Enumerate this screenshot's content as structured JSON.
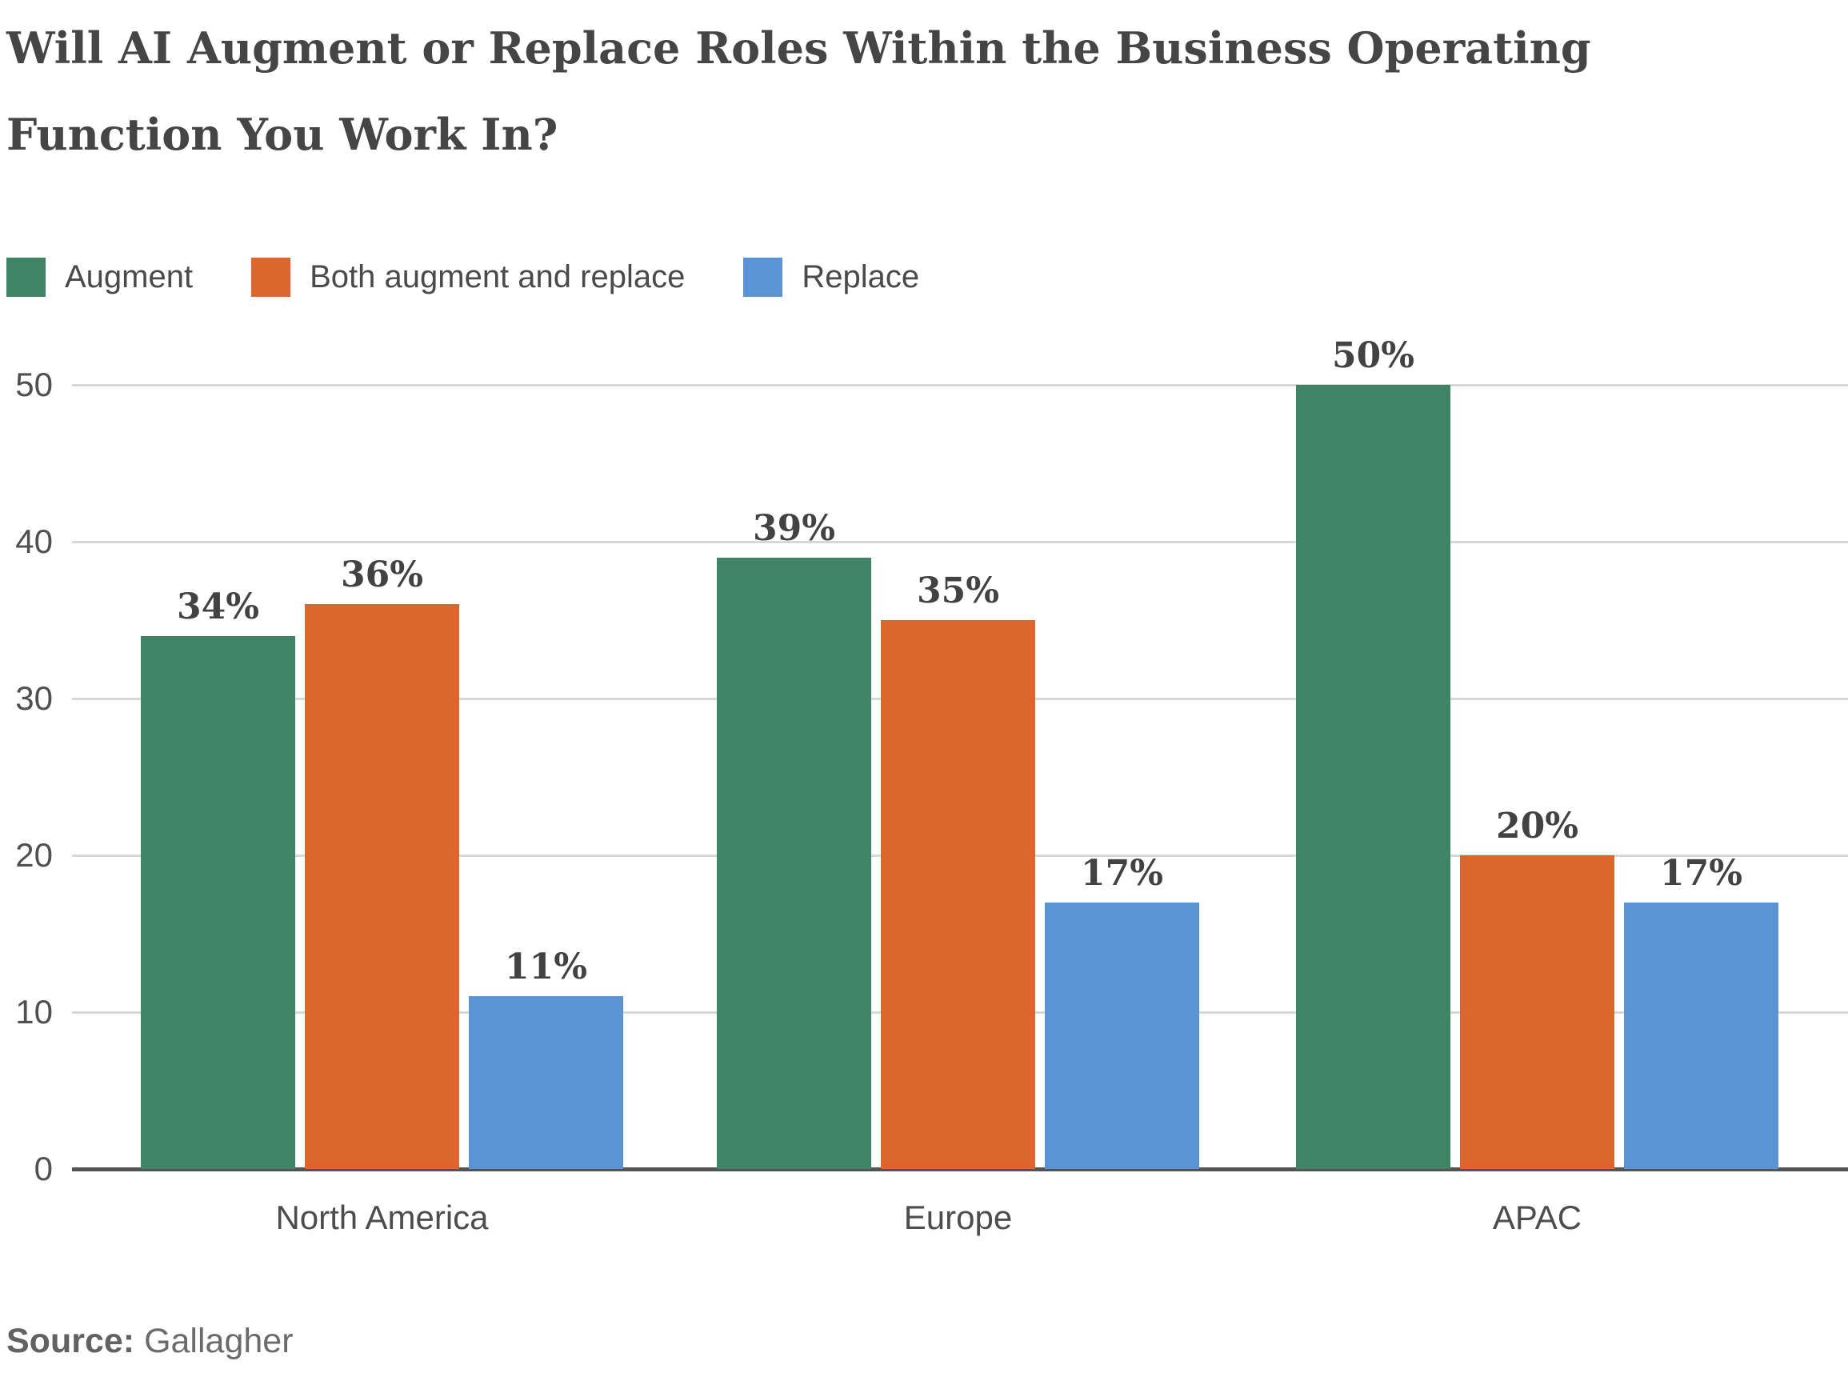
{
  "title": {
    "line1": "Will AI Augment or Replace Roles Within the Business Operating",
    "line2": "Function You Work In?"
  },
  "source": {
    "label": "Source:",
    "value": "Gallagher"
  },
  "chart_data": {
    "type": "bar",
    "title": "Will AI Augment or Replace Roles Within the Business Operating Function You Work In?",
    "categories": [
      "North America",
      "Europe",
      "APAC"
    ],
    "series": [
      {
        "name": "Augment",
        "color": "#3F8464",
        "values": [
          34,
          39,
          50
        ]
      },
      {
        "name": "Both augment and replace",
        "color": "#DD662F",
        "values": [
          36,
          35,
          20
        ]
      },
      {
        "name": "Replace",
        "color": "#5A94D5",
        "values": [
          11,
          17,
          17
        ]
      }
    ],
    "value_suffix": "%",
    "xlabel": "",
    "ylabel": "",
    "ylim": [
      0,
      52
    ],
    "yticks": [
      0,
      10,
      20,
      30,
      40,
      50
    ],
    "grid": true,
    "legend_position": "top-left",
    "colors": {
      "grid": "#d8d8d8",
      "axis": "#545454",
      "tick_text": "#505050",
      "label_text": "#424242",
      "title_text": "#454545"
    }
  }
}
